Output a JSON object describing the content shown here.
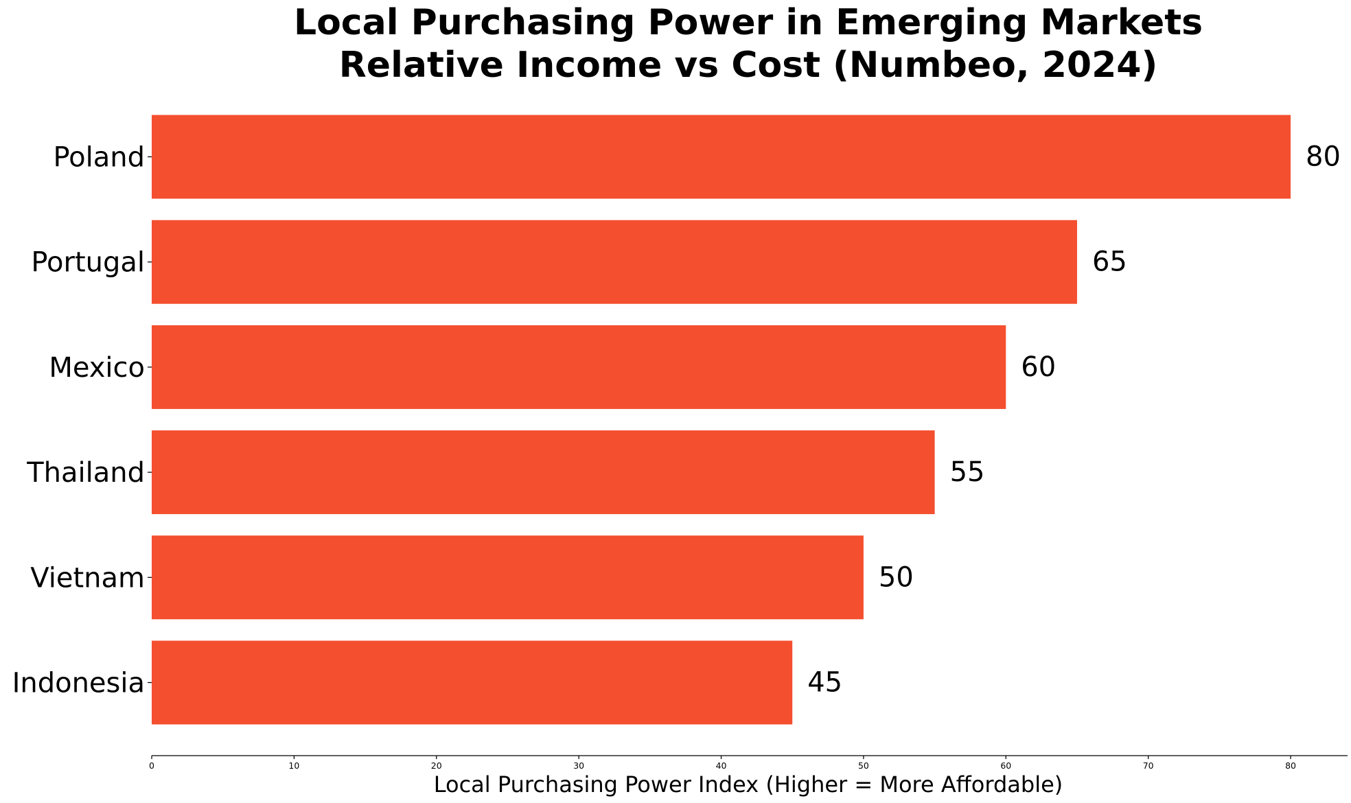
{
  "chart_data": {
    "type": "bar",
    "orientation": "horizontal",
    "title_lines": [
      "Local Purchasing Power in Emerging Markets",
      "Relative Income vs Cost (Numbeo, 2024)"
    ],
    "xlabel": "Local Purchasing Power Index (Higher = More Affordable)",
    "ylabel": "",
    "categories": [
      "Poland",
      "Portugal",
      "Mexico",
      "Thailand",
      "Vietnam",
      "Indonesia"
    ],
    "values": [
      80,
      65,
      60,
      55,
      50,
      45
    ],
    "value_labels": [
      "80",
      "65",
      "60",
      "55",
      "50",
      "45"
    ],
    "xlim": [
      0,
      84
    ],
    "xticks": [
      0,
      10,
      20,
      30,
      40,
      50,
      60,
      70,
      80
    ],
    "xtick_labels": [
      "0",
      "10",
      "20",
      "30",
      "40",
      "50",
      "60",
      "70",
      "80"
    ],
    "bar_color": "#f44f2f",
    "grid": false,
    "legend": "none",
    "spines": "bottom-only"
  }
}
